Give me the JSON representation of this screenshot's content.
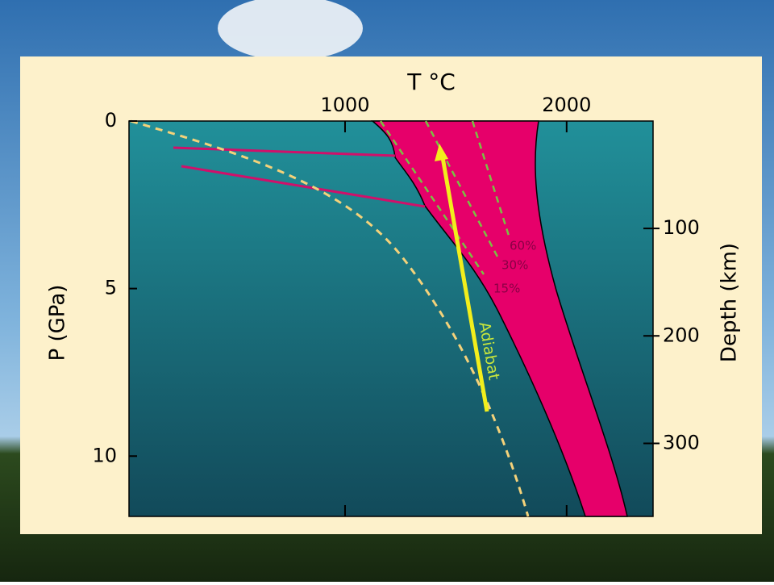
{
  "diagram": {
    "top_axis": {
      "label": "T °C",
      "lim": [
        25,
        2390
      ],
      "ticks": [
        1000,
        2000
      ]
    },
    "left_axis": {
      "label": "P (GPa)",
      "lim": [
        0,
        11.8
      ],
      "ticks": [
        0,
        5,
        10
      ]
    },
    "right_axis": {
      "label": "Depth (km)",
      "lim": [
        0,
        368
      ],
      "ticks": [
        100,
        200,
        300
      ]
    },
    "melt_labels": [
      "60%",
      "30%",
      "15%"
    ],
    "adiabat_label": "Adiabat"
  }
}
